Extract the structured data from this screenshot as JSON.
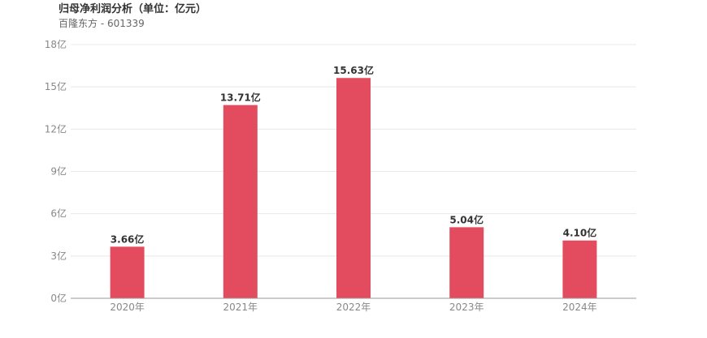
{
  "header": {
    "title": "归母净利润分析（单位：亿元）",
    "subtitle": "百隆东方 - 601339"
  },
  "chart_data": {
    "type": "bar",
    "categories": [
      "2020年",
      "2021年",
      "2022年",
      "2023年",
      "2024年"
    ],
    "values": [
      3.66,
      13.71,
      15.63,
      5.04,
      4.1
    ],
    "data_labels": [
      "3.66亿",
      "13.71亿",
      "15.63亿",
      "5.04亿",
      "4.10亿"
    ],
    "yticks": [
      0,
      3,
      6,
      9,
      12,
      15,
      18
    ],
    "ytick_labels": [
      "0亿",
      "3亿",
      "6亿",
      "9亿",
      "12亿",
      "15亿",
      "18亿"
    ],
    "ylim": [
      0,
      18
    ],
    "grid": true,
    "bar_color": "#e34c5f"
  }
}
